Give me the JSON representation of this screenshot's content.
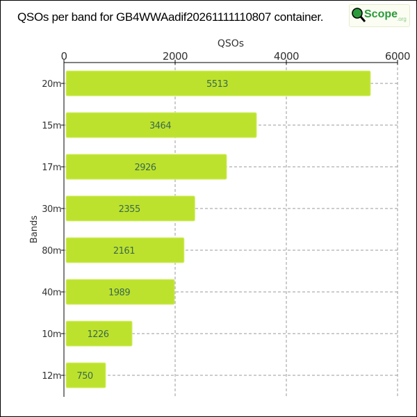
{
  "title": "QSOs per band for GB4WWAadif20261111110807 container.",
  "logo": {
    "text": "Scope",
    "suffix": ".org",
    "lettering": "QScope.org"
  },
  "chart_data": {
    "type": "bar",
    "orientation": "horizontal",
    "title": "QSOs per band for GB4WWAadif20261111110807 container.",
    "xlabel": "QSOs",
    "ylabel": "Bands",
    "categories": [
      "20m",
      "15m",
      "17m",
      "30m",
      "80m",
      "40m",
      "10m",
      "12m"
    ],
    "values": [
      5513,
      3464,
      2926,
      2355,
      2161,
      1989,
      1226,
      750
    ],
    "xlim": [
      0,
      6000
    ],
    "xticks": [
      0,
      2000,
      4000,
      6000
    ],
    "xaxis_position": "top",
    "grid": true,
    "bar_color": "#bde22e",
    "label_color": "#3a6a4a"
  }
}
